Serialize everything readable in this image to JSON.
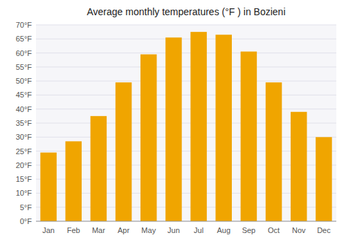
{
  "chart_data": {
    "type": "bar",
    "title": "Average monthly temperatures (°F ) in Bozieni",
    "categories": [
      "Jan",
      "Feb",
      "Mar",
      "Apr",
      "May",
      "Jun",
      "Jul",
      "Aug",
      "Sep",
      "Oct",
      "Nov",
      "Dec"
    ],
    "values": [
      24.5,
      28.5,
      37.5,
      49.5,
      59.5,
      65.5,
      67.5,
      66.5,
      60.5,
      49.5,
      39.0,
      30.0
    ],
    "color": "#F0A500",
    "ylim": [
      0,
      70
    ],
    "yticks": [
      {
        "value": 0,
        "label": "0°F"
      },
      {
        "value": 5,
        "label": "5°F"
      },
      {
        "value": 10,
        "label": "10°F"
      },
      {
        "value": 15,
        "label": "15°F"
      },
      {
        "value": 20,
        "label": "20°F"
      },
      {
        "value": 25,
        "label": "25°F"
      },
      {
        "value": 30,
        "label": "30°F"
      },
      {
        "value": 35,
        "label": "35°F"
      },
      {
        "value": 40,
        "label": "40°F"
      },
      {
        "value": 45,
        "label": "45°F"
      },
      {
        "value": 50,
        "label": "50°F"
      },
      {
        "value": 55,
        "label": "55°F"
      },
      {
        "value": 60,
        "label": "60°F"
      },
      {
        "value": 65,
        "label": "65°F"
      },
      {
        "value": 70,
        "label": "70°F"
      }
    ],
    "grid": true
  }
}
